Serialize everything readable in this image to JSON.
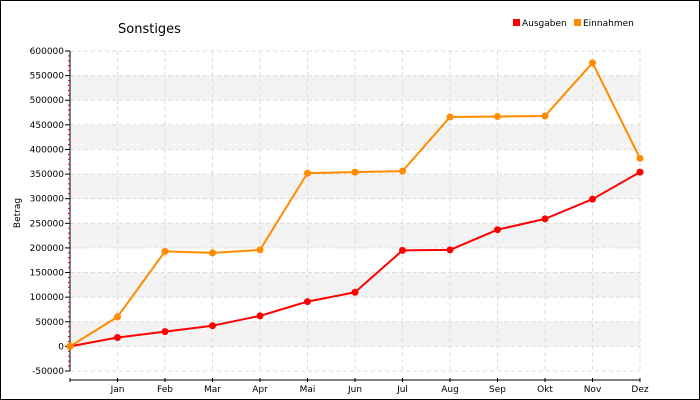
{
  "chart_data": {
    "type": "line",
    "title": "Sonstiges",
    "xlabel": "",
    "ylabel": "Betrag",
    "ylim": [
      -50000,
      600000
    ],
    "yticks": [
      -50000,
      0,
      50000,
      100000,
      150000,
      200000,
      250000,
      300000,
      350000,
      400000,
      450000,
      500000,
      550000,
      600000
    ],
    "categories": [
      "",
      "Jan",
      "Feb",
      "Mar",
      "Apr",
      "Mai",
      "Jun",
      "Jul",
      "Aug",
      "Sep",
      "Okt",
      "Nov",
      "Dez"
    ],
    "grid": true,
    "legend_position": "top-right",
    "series": [
      {
        "name": "Ausgaben",
        "color": "#ff0000",
        "values": [
          0,
          18000,
          30000,
          42000,
          62000,
          91000,
          110000,
          195000,
          196000,
          237000,
          259000,
          299000,
          354000
        ]
      },
      {
        "name": "Einnahmen",
        "color": "#ff8c00",
        "values": [
          0,
          60000,
          193000,
          190000,
          196000,
          352000,
          354000,
          356000,
          466000,
          467000,
          468000,
          576000,
          382000
        ]
      }
    ]
  }
}
